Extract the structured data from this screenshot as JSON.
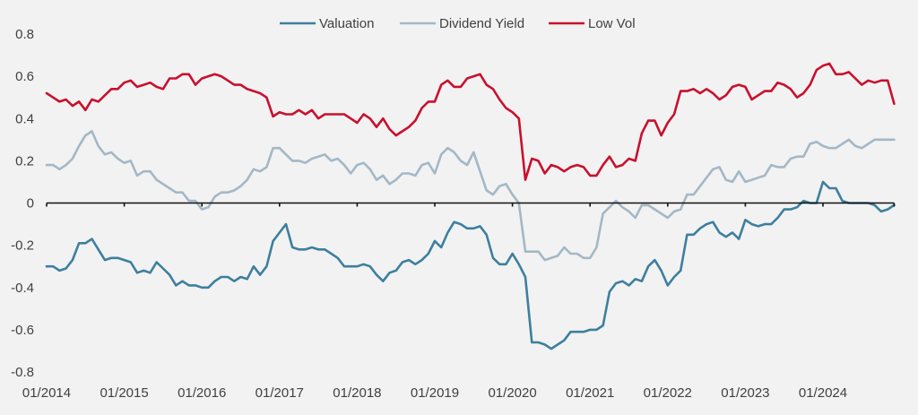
{
  "chart_data": {
    "type": "line",
    "title": "",
    "xlabel": "",
    "ylabel": "",
    "ylim": [
      -0.8,
      0.8
    ],
    "yticks": [
      "0.8",
      "0.6",
      "0.4",
      "0.2",
      "0",
      "-0.2",
      "-0.4",
      "-0.6",
      "-0.8"
    ],
    "ytick_values": [
      0.8,
      0.6,
      0.4,
      0.2,
      0,
      -0.2,
      -0.4,
      -0.6,
      -0.8
    ],
    "xticks": [
      "01/2014",
      "01/2015",
      "01/2016",
      "01/2017",
      "01/2018",
      "01/2019",
      "01/2020",
      "01/2021",
      "01/2022",
      "01/2023",
      "01/2024"
    ],
    "x_start": "01/2014",
    "x_frequency": "monthly",
    "n_points": 132,
    "grid": false,
    "legend_position": "top-center",
    "series": [
      {
        "name": "Valuation",
        "color": "#3d7f9e",
        "values": [
          -0.3,
          -0.3,
          -0.32,
          -0.31,
          -0.27,
          -0.19,
          -0.19,
          -0.17,
          -0.22,
          -0.27,
          -0.26,
          -0.26,
          -0.27,
          -0.28,
          -0.33,
          -0.32,
          -0.33,
          -0.28,
          -0.31,
          -0.34,
          -0.39,
          -0.37,
          -0.39,
          -0.39,
          -0.4,
          -0.4,
          -0.37,
          -0.35,
          -0.35,
          -0.37,
          -0.35,
          -0.36,
          -0.3,
          -0.34,
          -0.3,
          -0.18,
          -0.14,
          -0.1,
          -0.21,
          -0.22,
          -0.22,
          -0.21,
          -0.22,
          -0.22,
          -0.24,
          -0.26,
          -0.3,
          -0.3,
          -0.3,
          -0.29,
          -0.3,
          -0.34,
          -0.37,
          -0.33,
          -0.32,
          -0.28,
          -0.27,
          -0.29,
          -0.27,
          -0.24,
          -0.18,
          -0.21,
          -0.14,
          -0.09,
          -0.1,
          -0.12,
          -0.12,
          -0.11,
          -0.15,
          -0.26,
          -0.29,
          -0.29,
          -0.24,
          -0.29,
          -0.35,
          -0.66,
          -0.66,
          -0.67,
          -0.69,
          -0.67,
          -0.65,
          -0.61,
          -0.61,
          -0.61,
          -0.6,
          -0.6,
          -0.58,
          -0.42,
          -0.38,
          -0.37,
          -0.39,
          -0.36,
          -0.37,
          -0.3,
          -0.27,
          -0.32,
          -0.39,
          -0.35,
          -0.32,
          -0.15,
          -0.15,
          -0.12,
          -0.1,
          -0.09,
          -0.14,
          -0.16,
          -0.14,
          -0.17,
          -0.08,
          -0.1,
          -0.11,
          -0.1,
          -0.1,
          -0.07,
          -0.03,
          -0.03,
          -0.02,
          0.01,
          0.0,
          0.0,
          0.1,
          0.07,
          0.07,
          0.01,
          0.0,
          0.0,
          0.0,
          0.0,
          -0.01,
          -0.04,
          -0.03,
          -0.01
        ]
      },
      {
        "name": "Dividend Yield",
        "color": "#a3b8c6",
        "values": [
          0.18,
          0.18,
          0.16,
          0.18,
          0.21,
          0.27,
          0.32,
          0.34,
          0.27,
          0.23,
          0.24,
          0.21,
          0.19,
          0.2,
          0.13,
          0.15,
          0.15,
          0.11,
          0.09,
          0.07,
          0.05,
          0.05,
          0.01,
          0.01,
          -0.03,
          -0.02,
          0.03,
          0.05,
          0.05,
          0.06,
          0.08,
          0.11,
          0.16,
          0.15,
          0.17,
          0.26,
          0.26,
          0.23,
          0.2,
          0.2,
          0.19,
          0.21,
          0.22,
          0.23,
          0.2,
          0.21,
          0.18,
          0.14,
          0.18,
          0.19,
          0.16,
          0.11,
          0.13,
          0.09,
          0.11,
          0.14,
          0.14,
          0.13,
          0.18,
          0.19,
          0.14,
          0.23,
          0.26,
          0.24,
          0.2,
          0.18,
          0.24,
          0.15,
          0.06,
          0.04,
          0.08,
          0.09,
          0.04,
          0.0,
          -0.23,
          -0.23,
          -0.23,
          -0.27,
          -0.26,
          -0.25,
          -0.21,
          -0.24,
          -0.24,
          -0.26,
          -0.26,
          -0.21,
          -0.05,
          -0.02,
          0.01,
          -0.02,
          -0.04,
          -0.07,
          -0.01,
          -0.01,
          -0.03,
          -0.05,
          -0.07,
          -0.04,
          -0.03,
          0.04,
          0.04,
          0.08,
          0.12,
          0.16,
          0.17,
          0.11,
          0.1,
          0.15,
          0.1,
          0.11,
          0.12,
          0.13,
          0.18,
          0.17,
          0.17,
          0.21,
          0.22,
          0.22,
          0.28,
          0.29,
          0.27,
          0.26,
          0.26,
          0.28,
          0.3,
          0.27,
          0.26,
          0.28,
          0.3,
          0.3,
          0.3,
          0.3
        ]
      },
      {
        "name": "Low Vol",
        "color": "#c8102e",
        "values": [
          0.52,
          0.5,
          0.48,
          0.49,
          0.46,
          0.48,
          0.44,
          0.49,
          0.48,
          0.51,
          0.54,
          0.54,
          0.57,
          0.58,
          0.55,
          0.56,
          0.57,
          0.55,
          0.54,
          0.59,
          0.59,
          0.61,
          0.61,
          0.56,
          0.59,
          0.6,
          0.61,
          0.6,
          0.58,
          0.56,
          0.56,
          0.54,
          0.53,
          0.52,
          0.5,
          0.41,
          0.43,
          0.42,
          0.42,
          0.44,
          0.42,
          0.44,
          0.4,
          0.42,
          0.42,
          0.42,
          0.42,
          0.4,
          0.38,
          0.42,
          0.4,
          0.36,
          0.4,
          0.35,
          0.32,
          0.34,
          0.36,
          0.39,
          0.45,
          0.48,
          0.48,
          0.56,
          0.58,
          0.55,
          0.55,
          0.59,
          0.6,
          0.61,
          0.56,
          0.54,
          0.49,
          0.45,
          0.43,
          0.4,
          0.11,
          0.21,
          0.2,
          0.14,
          0.18,
          0.17,
          0.15,
          0.17,
          0.18,
          0.17,
          0.13,
          0.13,
          0.18,
          0.22,
          0.17,
          0.18,
          0.21,
          0.2,
          0.33,
          0.39,
          0.39,
          0.32,
          0.38,
          0.42,
          0.53,
          0.53,
          0.54,
          0.52,
          0.54,
          0.52,
          0.49,
          0.51,
          0.55,
          0.56,
          0.55,
          0.49,
          0.51,
          0.53,
          0.53,
          0.57,
          0.56,
          0.54,
          0.5,
          0.52,
          0.56,
          0.63,
          0.65,
          0.66,
          0.61,
          0.61,
          0.62,
          0.59,
          0.56,
          0.58,
          0.57,
          0.58,
          0.58,
          0.47
        ]
      }
    ]
  }
}
